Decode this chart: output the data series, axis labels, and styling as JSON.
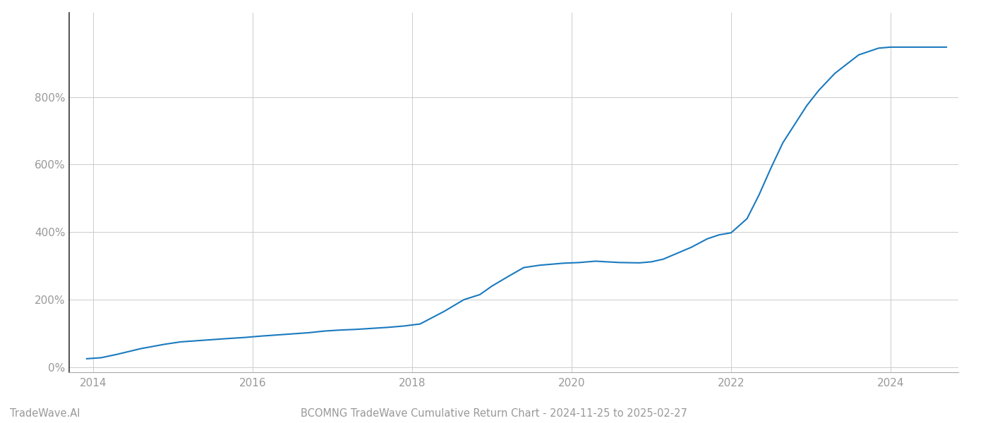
{
  "title": "BCOMNG TradeWave Cumulative Return Chart - 2024-11-25 to 2025-02-27",
  "watermark": "TradeWave.AI",
  "line_color": "#1a7abf",
  "background_color": "#ffffff",
  "grid_color": "#cccccc",
  "x_values": [
    2013.92,
    2014.1,
    2014.3,
    2014.6,
    2014.9,
    2015.1,
    2015.4,
    2015.7,
    2015.9,
    2016.1,
    2016.4,
    2016.7,
    2016.9,
    2017.1,
    2017.3,
    2017.5,
    2017.7,
    2017.9,
    2018.1,
    2018.4,
    2018.65,
    2018.85,
    2019.0,
    2019.2,
    2019.4,
    2019.6,
    2019.75,
    2019.9,
    2020.1,
    2020.3,
    2020.6,
    2020.85,
    2021.0,
    2021.15,
    2021.3,
    2021.5,
    2021.7,
    2021.85,
    2022.0,
    2022.2,
    2022.35,
    2022.5,
    2022.65,
    2022.8,
    2022.95,
    2023.1,
    2023.3,
    2023.6,
    2023.85,
    2024.0,
    2024.2,
    2024.5,
    2024.7
  ],
  "y_values": [
    25,
    28,
    38,
    55,
    68,
    75,
    80,
    85,
    88,
    92,
    97,
    102,
    107,
    110,
    112,
    115,
    118,
    122,
    128,
    165,
    200,
    215,
    240,
    268,
    295,
    302,
    305,
    308,
    310,
    314,
    310,
    309,
    312,
    320,
    335,
    355,
    380,
    392,
    398,
    440,
    510,
    590,
    665,
    720,
    775,
    820,
    870,
    925,
    945,
    948,
    948,
    948,
    948
  ],
  "xlim": [
    2013.7,
    2024.85
  ],
  "ylim": [
    -15,
    1050
  ],
  "yticks": [
    0,
    200,
    400,
    600,
    800
  ],
  "xticks": [
    2014,
    2016,
    2018,
    2020,
    2022,
    2024
  ],
  "line_width": 1.5,
  "title_fontsize": 10.5,
  "watermark_fontsize": 10.5,
  "tick_fontsize": 11,
  "tick_color": "#999999",
  "spine_color": "#aaaaaa",
  "left_spine_color": "#333333"
}
